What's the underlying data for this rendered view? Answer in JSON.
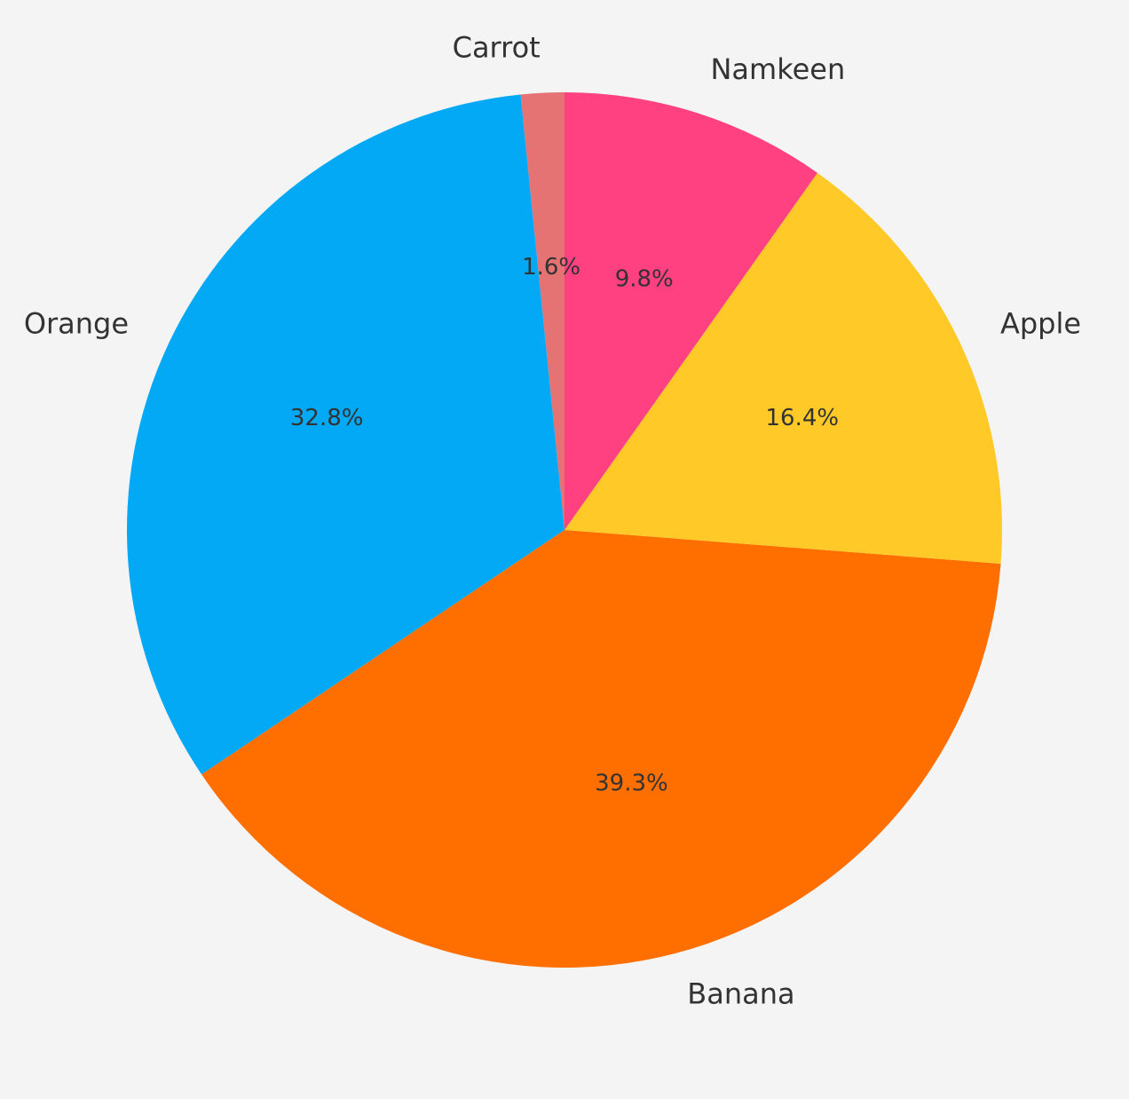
{
  "chart_data": {
    "type": "pie",
    "title": "",
    "start": "top, counterclockwise",
    "slices": [
      {
        "label": "Carrot",
        "value": 1.6,
        "pct_label": "1.6%",
        "color": "#e57373"
      },
      {
        "label": "Orange",
        "value": 32.8,
        "pct_label": "32.8%",
        "color": "#03a9f4"
      },
      {
        "label": "Banana",
        "value": 39.3,
        "pct_label": "39.3%",
        "color": "#ff6f00"
      },
      {
        "label": "Apple",
        "value": 16.4,
        "pct_label": "16.4%",
        "color": "#ffca28"
      },
      {
        "label": "Namkeen",
        "value": 9.8,
        "pct_label": "9.8%",
        "color": "#ff4081"
      }
    ]
  },
  "colors": {
    "background": "#f4f4f4",
    "text": "#333333"
  }
}
